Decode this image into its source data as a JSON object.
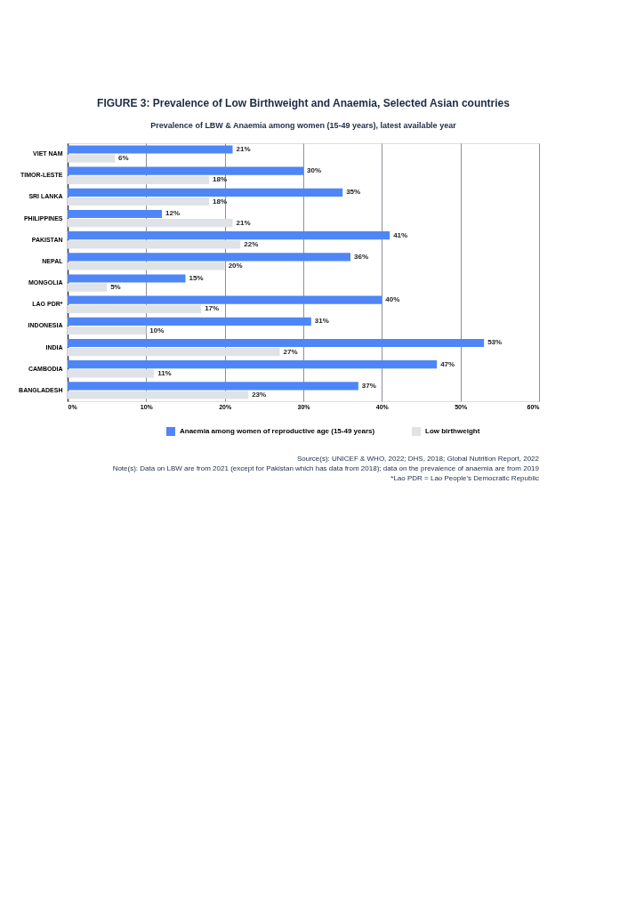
{
  "chart_data": {
    "type": "bar",
    "orientation": "horizontal",
    "title": "FIGURE 3: Prevalence of Low Birthweight and Anaemia, Selected Asian countries",
    "subtitle": "Prevalence of LBW & Anaemia among women (15-49 years), latest available year",
    "categories": [
      "VIET NAM",
      "TIMOR-LESTE",
      "SRI LANKA",
      "PHILIPPINES",
      "PAKISTAN",
      "NEPAL",
      "MONGOLIA",
      "LAO PDR*",
      "INDONESIA",
      "INDIA",
      "CAMBODIA",
      "BANGLADESH"
    ],
    "series": [
      {
        "name": "Anaemia among women of reproductive age (15-49 years)",
        "color": "#4f86f7",
        "values": [
          21,
          30,
          35,
          12,
          41,
          36,
          15,
          40,
          31,
          53,
          47,
          37
        ],
        "value_labels": [
          "21%",
          "30%",
          "35%",
          "12%",
          "41%",
          "36%",
          "15%",
          "40%",
          "31%",
          "53%",
          "47%",
          "37%"
        ]
      },
      {
        "name": "Low birthweight",
        "color": "#dfe3e8",
        "values": [
          6,
          18,
          18,
          21,
          22,
          20,
          5,
          17,
          10,
          27,
          11,
          23
        ],
        "value_labels": [
          "6%",
          "18%",
          "18%",
          "21%",
          "22%",
          "20%",
          "5%",
          "17%",
          "10%",
          "27%",
          "11%",
          "23%"
        ]
      }
    ],
    "xlim": [
      0,
      60
    ],
    "xticks": [
      {
        "value": 0,
        "label": "0%"
      },
      {
        "value": 10,
        "label": "10%"
      },
      {
        "value": 20,
        "label": "20%"
      },
      {
        "value": 30,
        "label": "30%"
      },
      {
        "value": 40,
        "label": "40%"
      },
      {
        "value": 50,
        "label": "50%"
      },
      {
        "value": 60,
        "label": "60%"
      }
    ],
    "grid": "x",
    "legend": "bottom",
    "annotations": [
      "Source(s): UNICEF & WHO, 2022; DHS, 2018; Global Nutrition Report, 2022",
      "Note(s): Data on LBW are from 2021 (except for Pakistan which has data from 2018); data on the prevalence of anaemia are from 2019",
      "*Lao PDR = Lao People's Democratic Republic"
    ]
  }
}
